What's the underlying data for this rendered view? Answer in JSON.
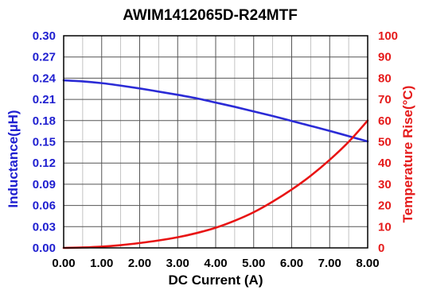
{
  "chart_data": {
    "type": "line",
    "title": "AWIM1412065D-R24MTF",
    "xlabel": "DC Current (A)",
    "ylabel_left": "Inductance(µH)",
    "ylabel_right": "Temperature Rise(°C)",
    "xlim": [
      0,
      8
    ],
    "ylim_left": [
      0,
      0.3
    ],
    "ylim_right": [
      0,
      100
    ],
    "x_ticks": [
      "0.00",
      "1.00",
      "2.00",
      "3.00",
      "4.00",
      "5.00",
      "6.00",
      "7.00",
      "8.00"
    ],
    "y_left_ticks": [
      "0.00",
      "0.03",
      "0.06",
      "0.09",
      "0.12",
      "0.15",
      "0.18",
      "0.21",
      "0.24",
      "0.27",
      "0.30"
    ],
    "y_right_ticks": [
      "0",
      "10",
      "20",
      "30",
      "40",
      "50",
      "60",
      "70",
      "80",
      "90",
      "100"
    ],
    "grid": true,
    "series": [
      {
        "axis": "left",
        "color": "#2b2bd6",
        "x": [
          0,
          0.5,
          1,
          1.5,
          2,
          2.5,
          3,
          3.5,
          4,
          4.5,
          5,
          5.5,
          6,
          6.5,
          7,
          7.5,
          8
        ],
        "values": [
          0.237,
          0.2355,
          0.233,
          0.2295,
          0.2255,
          0.221,
          0.2165,
          0.2115,
          0.2055,
          0.1995,
          0.193,
          0.1865,
          0.1795,
          0.1725,
          0.1655,
          0.158,
          0.1505
        ]
      },
      {
        "axis": "right",
        "color": "#e81414",
        "x": [
          0,
          0.5,
          1,
          1.5,
          2,
          2.5,
          3,
          3.5,
          4,
          4.5,
          5,
          5.5,
          6,
          6.5,
          7,
          7.5,
          8
        ],
        "values": [
          0,
          0.2,
          0.6,
          1.3,
          2.3,
          3.5,
          5,
          7,
          9.5,
          12.8,
          16.8,
          21.8,
          27.5,
          34,
          41.5,
          50,
          60
        ]
      }
    ],
    "colors": {
      "left_axis": "#1f1fd0",
      "right_axis": "#e51b1b",
      "grid_major": "#555555",
      "grid_minor": "#b5b5b5"
    }
  }
}
